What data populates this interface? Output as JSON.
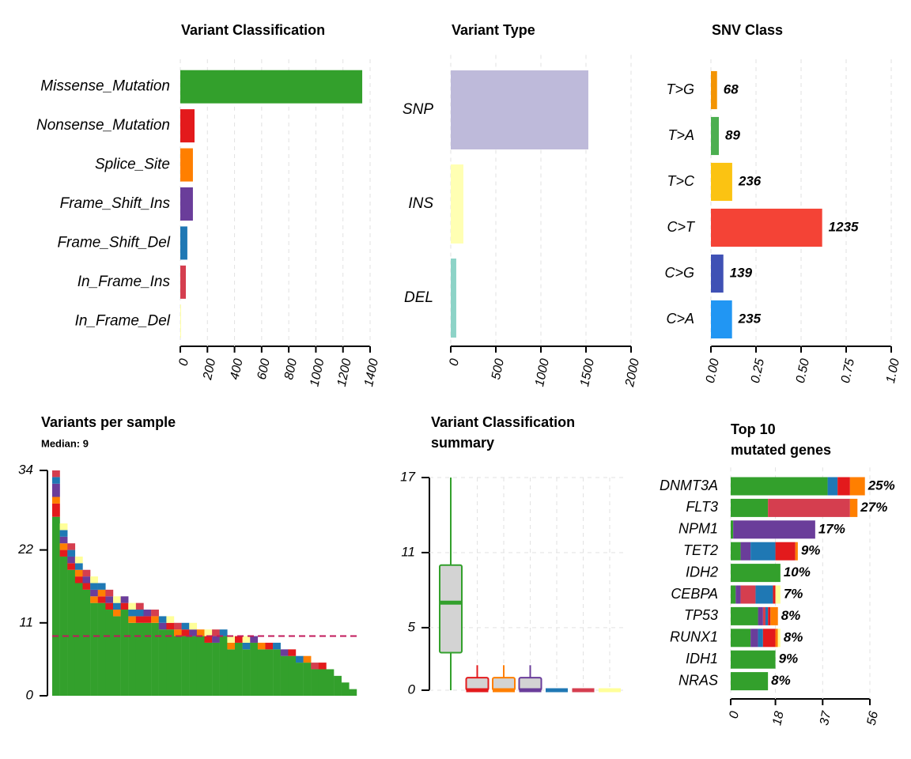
{
  "chart_data": [
    {
      "type": "hbar",
      "title": "Variant Classification",
      "categories": [
        "Missense_Mutation",
        "Nonsense_Mutation",
        "Splice_Site",
        "Frame_Shift_Ins",
        "Frame_Shift_Del",
        "In_Frame_Ins",
        "In_Frame_Del"
      ],
      "values": [
        1342,
        105,
        93,
        93,
        52,
        41,
        5
      ],
      "colors": [
        "#33a02c",
        "#e31a1c",
        "#ff7f00",
        "#6a3d9a",
        "#1f78b4",
        "#d53e4f",
        "#ffff99"
      ],
      "xlim": [
        0,
        1400
      ],
      "xticks": [
        0,
        200,
        400,
        600,
        800,
        1000,
        1200,
        1400
      ],
      "grid": true
    },
    {
      "type": "hbar",
      "title": "Variant Type",
      "categories": [
        "SNP",
        "INS",
        "DEL"
      ],
      "values": [
        1526,
        140,
        61
      ],
      "colors": [
        "#bebada",
        "#ffffb3",
        "#8dd3c7"
      ],
      "xlim": [
        0,
        2000
      ],
      "xticks": [
        0,
        500,
        1000,
        1500,
        2000
      ],
      "grid": true
    },
    {
      "type": "hbar",
      "title": "SNV Class",
      "categories": [
        "T>G",
        "T>A",
        "T>C",
        "C>T",
        "C>G",
        "C>A"
      ],
      "values": [
        0.034,
        0.044,
        0.118,
        0.617,
        0.069,
        0.117
      ],
      "counts": [
        68,
        89,
        236,
        1235,
        139,
        235
      ],
      "colors": [
        "#f39404",
        "#4caf50",
        "#fbc312",
        "#f44336",
        "#3f51b5",
        "#2196f3"
      ],
      "xlim": [
        0,
        1
      ],
      "xticks": [
        {
          "value": 0,
          "label": "0.00"
        },
        {
          "value": 0.25,
          "label": "0.25"
        },
        {
          "value": 0.5,
          "label": "0.50"
        },
        {
          "value": 0.75,
          "label": "0.75"
        },
        {
          "value": 1,
          "label": "1.00"
        }
      ],
      "grid": true
    },
    {
      "type": "stacked_bar",
      "title": "Variants per sample",
      "subtitle": "Median: 9",
      "median": 9,
      "series": [
        {
          "color": "#33a02c",
          "values": [
            27,
            21,
            19,
            17,
            16,
            14,
            14,
            13,
            12,
            13,
            11,
            11,
            11,
            11,
            10,
            10,
            9,
            9,
            9,
            9,
            8,
            8,
            9,
            7,
            8,
            7,
            8,
            7,
            7,
            7,
            6,
            6,
            5,
            5,
            4,
            4,
            4,
            3,
            2,
            1
          ]
        },
        {
          "color": "#e31a1c",
          "values": [
            2,
            1,
            1,
            1,
            1,
            0,
            1,
            1,
            0,
            1,
            0,
            1,
            1,
            0,
            0,
            1,
            0,
            1,
            0,
            0,
            1,
            0,
            0,
            0,
            1,
            0,
            0,
            0,
            1,
            0,
            0,
            1,
            0,
            0,
            0,
            1,
            0,
            0,
            0,
            0
          ]
        },
        {
          "color": "#ff7f00",
          "values": [
            1,
            1,
            0,
            1,
            0,
            1,
            1,
            0,
            1,
            0,
            1,
            0,
            0,
            1,
            0,
            0,
            1,
            0,
            0,
            1,
            0,
            0,
            0,
            1,
            0,
            0,
            0,
            1,
            0,
            0,
            0,
            0,
            0,
            1,
            0,
            0,
            0,
            0,
            0,
            0
          ]
        },
        {
          "color": "#6a3d9a",
          "values": [
            2,
            1,
            1,
            0,
            1,
            1,
            0,
            1,
            0,
            1,
            0,
            0,
            1,
            0,
            1,
            0,
            0,
            0,
            1,
            0,
            0,
            1,
            0,
            0,
            0,
            0,
            1,
            0,
            0,
            0,
            1,
            0,
            0,
            0,
            0,
            0,
            0,
            0,
            0,
            0
          ]
        },
        {
          "color": "#1f78b4",
          "values": [
            1,
            1,
            1,
            1,
            0,
            1,
            1,
            0,
            1,
            0,
            1,
            1,
            0,
            0,
            1,
            0,
            0,
            1,
            0,
            0,
            0,
            0,
            1,
            0,
            0,
            1,
            0,
            0,
            0,
            1,
            0,
            0,
            1,
            0,
            0,
            0,
            0,
            0,
            0,
            0
          ]
        },
        {
          "color": "#d53e4f",
          "values": [
            1,
            0,
            1,
            0,
            1,
            0,
            0,
            1,
            0,
            0,
            0,
            1,
            0,
            1,
            0,
            0,
            1,
            0,
            0,
            0,
            0,
            1,
            0,
            0,
            0,
            0,
            0,
            0,
            0,
            0,
            0,
            0,
            0,
            0,
            1,
            0,
            0,
            0,
            0,
            0
          ]
        },
        {
          "color": "#ffff99",
          "values": [
            0,
            1,
            0,
            1,
            0,
            1,
            0,
            0,
            1,
            0,
            1,
            0,
            0,
            0,
            0,
            1,
            0,
            0,
            1,
            0,
            1,
            0,
            0,
            1,
            0,
            1,
            0,
            0,
            0,
            0,
            0,
            0,
            0,
            0,
            0,
            0,
            0,
            0,
            0,
            0
          ]
        }
      ],
      "ylim": [
        0,
        34
      ],
      "yticks": [
        0,
        11,
        22,
        34
      ],
      "median_color": "#c2185b"
    },
    {
      "type": "box",
      "title": [
        "Variant Classification",
        "summary"
      ],
      "boxes": [
        {
          "color": "#33a02c",
          "min": 0,
          "q1": 3,
          "median": 7,
          "q3": 10,
          "max": 17
        },
        {
          "color": "#e31a1c",
          "min": 0,
          "q1": 0,
          "median": 0,
          "q3": 1,
          "max": 2
        },
        {
          "color": "#ff7f00",
          "min": 0,
          "q1": 0,
          "median": 0,
          "q3": 1,
          "max": 2
        },
        {
          "color": "#6a3d9a",
          "min": 0,
          "q1": 0,
          "median": 0,
          "q3": 1,
          "max": 2
        },
        {
          "color": "#1f78b4",
          "min": 0,
          "q1": 0,
          "median": 0,
          "q3": 0,
          "max": 0
        },
        {
          "color": "#d53e4f",
          "min": 0,
          "q1": 0,
          "median": 0,
          "q3": 0,
          "max": 0
        },
        {
          "color": "#ffff99",
          "min": 0,
          "q1": 0,
          "median": 0,
          "q3": 0,
          "max": 0
        }
      ],
      "ylim": [
        0,
        17
      ],
      "yticks": [
        0,
        5,
        11,
        17
      ],
      "grid": true
    },
    {
      "type": "stacked_hbar",
      "title": [
        "Top 10",
        "mutated genes"
      ],
      "categories": [
        "DNMT3A",
        "FLT3",
        "NPM1",
        "TET2",
        "IDH2",
        "CEBPA",
        "TP53",
        "RUNX1",
        "IDH1",
        "NRAS"
      ],
      "series": [
        {
          "color": "#33a02c",
          "values": [
            39,
            15,
            1,
            4,
            20,
            2,
            11,
            8,
            18,
            15
          ]
        },
        {
          "color": "#e31a1c",
          "values": [
            5,
            0,
            0,
            8,
            0,
            1,
            1,
            5,
            0,
            0
          ]
        },
        {
          "color": "#ff7f00",
          "values": [
            6,
            3,
            0,
            1,
            0,
            0,
            3,
            1,
            0,
            0
          ]
        },
        {
          "color": "#6a3d9a",
          "values": [
            0,
            0,
            33,
            4,
            0,
            2,
            2,
            3,
            0,
            0
          ]
        },
        {
          "color": "#1f78b4",
          "values": [
            4,
            0,
            0,
            10,
            0,
            7,
            1,
            2,
            0,
            0
          ]
        },
        {
          "color": "#d53e4f",
          "values": [
            0,
            33,
            0,
            0,
            0,
            6,
            1,
            0,
            0,
            0
          ]
        },
        {
          "color": "#ffff99",
          "values": [
            0,
            0,
            0,
            0,
            0,
            2,
            0,
            1,
            0,
            0
          ]
        }
      ],
      "percent_labels": [
        "25%",
        "27%",
        "17%",
        "9%",
        "10%",
        "7%",
        "8%",
        "8%",
        "9%",
        "8%"
      ],
      "xlim": [
        0,
        56
      ],
      "xticks": [
        0,
        18,
        37,
        56
      ],
      "grid": true
    }
  ]
}
